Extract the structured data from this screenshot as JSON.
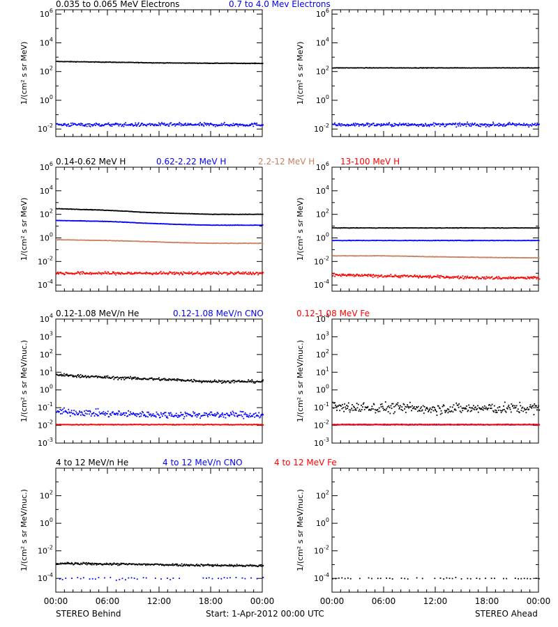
{
  "colors": {
    "black": "#000000",
    "blue": "#0000ff",
    "tan": "#c88060",
    "red": "#ff0000"
  },
  "footer": {
    "left": "STEREO Behind",
    "center": "Start:  1-Apr-2012 00:00 UTC",
    "right": "STEREO Ahead"
  },
  "chart_data": [
    {
      "type": "scatter",
      "row": 1,
      "spacecraft": "STEREO Behind",
      "yscale": "log",
      "ylabel": "1/(cm² s sr MeV)",
      "ylim": [
        0.003,
        2000000
      ],
      "yticks": [
        {
          "exp": "-2",
          "v": 0.01
        },
        {
          "exp": "0",
          "v": 1
        },
        {
          "exp": "2",
          "v": 100
        },
        {
          "exp": "4",
          "v": 10000
        },
        {
          "exp": "6",
          "v": 1000000
        }
      ],
      "xlim": [
        "00:00",
        "24:00"
      ],
      "xticks": [
        "00:00",
        "06:00",
        "12:00",
        "18:00",
        "00:00"
      ],
      "series": [
        {
          "name": "0.035 to 0.065 MeV Electrons",
          "color": "black",
          "x": [
            0,
            6,
            12,
            18,
            24
          ],
          "y": [
            500,
            450,
            400,
            380,
            370
          ],
          "scatter": 0.02,
          "style": "line"
        },
        {
          "name": "0.7 to 4.0 Mev Electrons",
          "color": "blue",
          "x": [
            0,
            6,
            12,
            18,
            24
          ],
          "y": [
            0.02,
            0.02,
            0.02,
            0.02,
            0.02
          ],
          "scatter": 0.12,
          "style": "dots"
        }
      ]
    },
    {
      "type": "scatter",
      "row": 1,
      "spacecraft": "STEREO Ahead",
      "yscale": "log",
      "ylabel": "1/(cm² s sr MeV)",
      "ylim": [
        0.003,
        2000000
      ],
      "yticks": [
        {
          "exp": "-2",
          "v": 0.01
        },
        {
          "exp": "0",
          "v": 1
        },
        {
          "exp": "2",
          "v": 100
        },
        {
          "exp": "4",
          "v": 10000
        },
        {
          "exp": "6",
          "v": 1000000
        }
      ],
      "xlim": [
        "00:00",
        "24:00"
      ],
      "xticks": [
        "00:00",
        "06:00",
        "12:00",
        "18:00",
        "00:00"
      ],
      "series": [
        {
          "color": "black",
          "x": [
            0,
            6,
            12,
            18,
            24
          ],
          "y": [
            180,
            180,
            180,
            180,
            180
          ],
          "scatter": 0.02,
          "style": "line"
        },
        {
          "color": "blue",
          "x": [
            0,
            6,
            12,
            18,
            24
          ],
          "y": [
            0.02,
            0.02,
            0.02,
            0.02,
            0.02
          ],
          "scatter": 0.12,
          "style": "dots"
        }
      ]
    },
    {
      "type": "scatter",
      "row": 2,
      "spacecraft": "STEREO Behind",
      "yscale": "log",
      "ylabel": "1/(cm² s sr MeV)",
      "ylim": [
        3e-05,
        1000000
      ],
      "yticks": [
        {
          "exp": "-4",
          "v": 0.0001
        },
        {
          "exp": "-2",
          "v": 0.01
        },
        {
          "exp": "0",
          "v": 1
        },
        {
          "exp": "2",
          "v": 100
        },
        {
          "exp": "4",
          "v": 10000
        },
        {
          "exp": "6",
          "v": 1000000
        }
      ],
      "xlim": [
        "00:00",
        "24:00"
      ],
      "xticks": [
        "00:00",
        "06:00",
        "12:00",
        "18:00",
        "00:00"
      ],
      "series": [
        {
          "name": "0.14-0.62 MeV H",
          "color": "black",
          "x": [
            0,
            6,
            10,
            14,
            18,
            24
          ],
          "y": [
            300,
            220,
            150,
            120,
            100,
            100
          ],
          "scatter": 0.02,
          "style": "line"
        },
        {
          "name": "0.62-2.22 MeV H",
          "color": "blue",
          "x": [
            0,
            6,
            10,
            14,
            18,
            24
          ],
          "y": [
            30,
            25,
            18,
            14,
            12,
            12
          ],
          "scatter": 0.02,
          "style": "line"
        },
        {
          "name": "2.2-12 MeV H",
          "color": "tan",
          "x": [
            0,
            6,
            10,
            14,
            18,
            24
          ],
          "y": [
            0.7,
            0.6,
            0.5,
            0.4,
            0.35,
            0.35
          ],
          "scatter": 0.02,
          "style": "line"
        },
        {
          "name": "13-100 MeV H",
          "color": "red",
          "x": [
            0,
            6,
            12,
            18,
            24
          ],
          "y": [
            0.001,
            0.001,
            0.001,
            0.001,
            0.001
          ],
          "scatter": 0.12,
          "style": "dots"
        }
      ]
    },
    {
      "type": "scatter",
      "row": 2,
      "spacecraft": "STEREO Ahead",
      "yscale": "log",
      "ylabel": "1/(cm² s sr MeV)",
      "ylim": [
        3e-05,
        1000000
      ],
      "yticks": [
        {
          "exp": "-4",
          "v": 0.0001
        },
        {
          "exp": "-2",
          "v": 0.01
        },
        {
          "exp": "0",
          "v": 1
        },
        {
          "exp": "2",
          "v": 100
        },
        {
          "exp": "4",
          "v": 10000
        },
        {
          "exp": "6",
          "v": 1000000
        }
      ],
      "xlim": [
        "00:00",
        "24:00"
      ],
      "xticks": [
        "00:00",
        "06:00",
        "12:00",
        "18:00",
        "00:00"
      ],
      "series": [
        {
          "color": "black",
          "x": [
            0,
            6,
            12,
            18,
            24
          ],
          "y": [
            7,
            7,
            7,
            7,
            7
          ],
          "scatter": 0.02,
          "style": "line"
        },
        {
          "color": "blue",
          "x": [
            0,
            6,
            12,
            18,
            24
          ],
          "y": [
            0.6,
            0.6,
            0.6,
            0.6,
            0.6
          ],
          "scatter": 0.02,
          "style": "line"
        },
        {
          "color": "tan",
          "x": [
            0,
            6,
            12,
            18,
            24
          ],
          "y": [
            0.03,
            0.03,
            0.025,
            0.022,
            0.02
          ],
          "scatter": 0.02,
          "style": "line"
        },
        {
          "color": "red",
          "x": [
            0,
            6,
            12,
            18,
            24
          ],
          "y": [
            0.0007,
            0.0006,
            0.0005,
            0.0004,
            0.0004
          ],
          "scatter": 0.12,
          "style": "dots"
        }
      ]
    },
    {
      "type": "scatter",
      "row": 3,
      "spacecraft": "STEREO Behind",
      "yscale": "log",
      "ylabel": "1/(cm² s sr MeV/nuc.)",
      "ylim": [
        0.001,
        10000
      ],
      "yticks": [
        {
          "exp": "-3",
          "v": 0.001
        },
        {
          "exp": "-2",
          "v": 0.01
        },
        {
          "exp": "-1",
          "v": 0.1
        },
        {
          "exp": "0",
          "v": 1
        },
        {
          "exp": "1",
          "v": 10
        },
        {
          "exp": "2",
          "v": 100
        },
        {
          "exp": "3",
          "v": 1000
        },
        {
          "exp": "4",
          "v": 10000
        }
      ],
      "xlim": [
        "00:00",
        "24:00"
      ],
      "xticks": [
        "00:00",
        "06:00",
        "12:00",
        "18:00",
        "00:00"
      ],
      "series": [
        {
          "name": "0.12-1.08 MeV/n He",
          "color": "black",
          "x": [
            0,
            6,
            12,
            18,
            24
          ],
          "y": [
            7,
            5,
            4,
            3,
            3
          ],
          "scatter": 0.08,
          "style": "dots"
        },
        {
          "name": "0.12-1.08 MeV/n CNO",
          "color": "blue",
          "x": [
            0,
            6,
            12,
            18,
            24
          ],
          "y": [
            0.06,
            0.045,
            0.04,
            0.04,
            0.04
          ],
          "scatter": 0.18,
          "style": "dots"
        },
        {
          "name": "0.12-1.08 MeV Fe",
          "color": "red",
          "x": [
            0,
            6,
            12,
            18,
            24
          ],
          "y": [
            0.011,
            0.011,
            0.011,
            0.011,
            0.011
          ],
          "scatter": 0.02,
          "style": "dots"
        }
      ]
    },
    {
      "type": "scatter",
      "row": 3,
      "spacecraft": "STEREO Ahead",
      "yscale": "log",
      "ylabel": "1/(cm² s sr MeV/nuc.)",
      "ylim": [
        0.001,
        10000
      ],
      "yticks": [
        {
          "exp": "-3",
          "v": 0.001
        },
        {
          "exp": "-2",
          "v": 0.01
        },
        {
          "exp": "-1",
          "v": 0.1
        },
        {
          "exp": "0",
          "v": 1
        },
        {
          "exp": "1",
          "v": 10
        },
        {
          "exp": "2",
          "v": 100
        },
        {
          "exp": "3",
          "v": 1000
        },
        {
          "exp": "4",
          "v": 10000
        }
      ],
      "xlim": [
        "00:00",
        "24:00"
      ],
      "xticks": [
        "00:00",
        "06:00",
        "12:00",
        "18:00",
        "00:00"
      ],
      "series": [
        {
          "color": "black",
          "x": [
            0,
            6,
            12,
            18,
            24
          ],
          "y": [
            0.1,
            0.1,
            0.09,
            0.09,
            0.09
          ],
          "scatter": 0.3,
          "style": "dots"
        },
        {
          "color": "blue",
          "x": [
            0,
            6,
            12,
            18,
            24
          ],
          "y": [
            0.011,
            0.011,
            0.011,
            0.011,
            0.011
          ],
          "scatter": 0.02,
          "style": "dots"
        },
        {
          "color": "red",
          "x": [
            0,
            6,
            12,
            18,
            24
          ],
          "y": [
            0.011,
            0.011,
            0.011,
            0.011,
            0.011
          ],
          "scatter": 0.02,
          "style": "dots"
        }
      ]
    },
    {
      "type": "scatter",
      "row": 4,
      "spacecraft": "STEREO Behind",
      "yscale": "log",
      "ylabel": "1/(cm² s sr MeV/nuc.)",
      "ylim": [
        1e-05,
        10000
      ],
      "yticks": [
        {
          "exp": "-4",
          "v": 0.0001
        },
        {
          "exp": "-2",
          "v": 0.01
        },
        {
          "exp": "0",
          "v": 1
        },
        {
          "exp": "2",
          "v": 100
        }
      ],
      "xlim": [
        "00:00",
        "24:00"
      ],
      "xticks": [
        "00:00",
        "06:00",
        "12:00",
        "18:00",
        "00:00"
      ],
      "series": [
        {
          "name": "4 to 12 MeV/n He",
          "color": "black",
          "x": [
            0,
            6,
            12,
            18,
            24
          ],
          "y": [
            0.0012,
            0.0011,
            0.001,
            0.0009,
            0.0008
          ],
          "scatter": 0.08,
          "style": "dots"
        },
        {
          "name": "4 to 12 MeV/n CNO",
          "color": "blue",
          "x": [
            0,
            6,
            12,
            18,
            24
          ],
          "y": [
            0.0001,
            0.0001,
            0.0001,
            0.0001,
            0.0001
          ],
          "scatter": 0.1,
          "style": "sparse"
        },
        {
          "name": "4 to 12 MeV Fe",
          "color": "red",
          "x": [],
          "y": [],
          "style": "dots"
        }
      ]
    },
    {
      "type": "scatter",
      "row": 4,
      "spacecraft": "STEREO Ahead",
      "yscale": "log",
      "ylabel": "1/(cm² s sr MeV/nuc.)",
      "ylim": [
        1e-05,
        10000
      ],
      "yticks": [
        {
          "exp": "-4",
          "v": 0.0001
        },
        {
          "exp": "-2",
          "v": 0.01
        },
        {
          "exp": "0",
          "v": 1
        },
        {
          "exp": "2",
          "v": 100
        }
      ],
      "xlim": [
        "00:00",
        "24:00"
      ],
      "xticks": [
        "00:00",
        "06:00",
        "12:00",
        "18:00",
        "00:00"
      ],
      "series": [
        {
          "color": "black",
          "x": [
            0,
            6,
            12,
            18,
            24
          ],
          "y": [
            0.0001,
            0.0001,
            0.0001,
            0.0001,
            0.0001
          ],
          "scatter": 0.05,
          "style": "sparse"
        }
      ]
    }
  ]
}
